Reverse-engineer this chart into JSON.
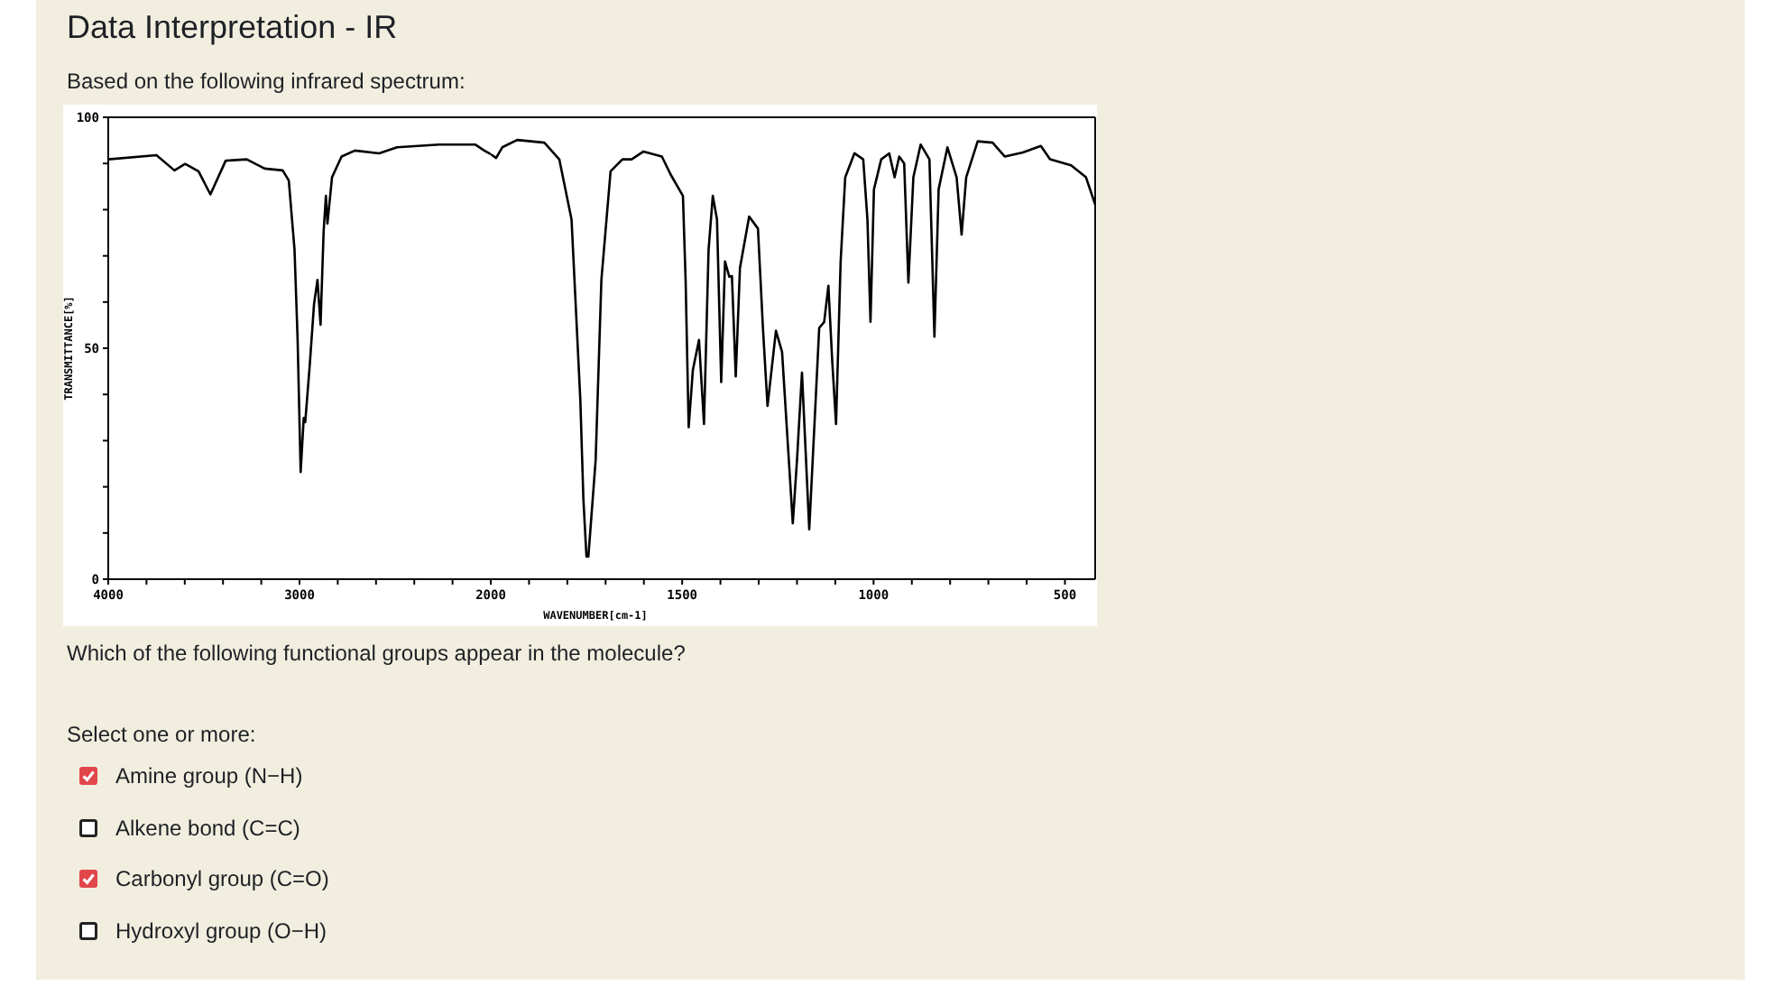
{
  "chart_data": [
    {
      "type": "line",
      "title": "Data Interpretation - IR",
      "subtitle": "Based on the following infrared spectrum:",
      "ylabel": "TRANSMITTANCE[%]",
      "annotations": [
        "Which of the following functional groups appear in the molecule?",
        "Select one or more:",
        "Amine group (N−H)",
        "Alkene bond (C=C)",
        "Carbonyl group (C=O)",
        "Hydroxyl group (O−H)"
      ],
      "x": [
        4000,
        3748,
        3654,
        3598,
        3528,
        3466,
        3386,
        3276,
        3182,
        3088,
        3056,
        3026,
        3010,
        2994,
        2978,
        2970,
        2946,
        2924,
        2906,
        2890,
        2874,
        2862,
        2854,
        2830,
        2780,
        2710,
        2584,
        2490,
        2270,
        2082,
        2034,
        2000
      ],
      "values": [
        90.9,
        91.8,
        88.5,
        89.9,
        88.3,
        83.3,
        90.6,
        90.9,
        88.9,
        88.5,
        86.3,
        71.3,
        52,
        23.2,
        34.9,
        34,
        46.6,
        59.6,
        64.8,
        55.1,
        75.2,
        83,
        77,
        87,
        91.5,
        92.8,
        92.2,
        93.5,
        94.1,
        94.1,
        92.8,
        92
      ],
      "color": "#000000",
      "marker": "none",
      "xlim": [
        4000,
        2000
      ],
      "xticks": [
        4000,
        {
          "value": 3800,
          "label": null
        },
        {
          "value": 3600,
          "label": null
        },
        {
          "value": 3400,
          "label": null
        },
        {
          "value": 3200,
          "label": null
        },
        3000,
        {
          "value": 2800,
          "label": null
        },
        {
          "value": 2600,
          "label": null
        },
        {
          "value": 2400,
          "label": null
        },
        {
          "value": 2200,
          "label": null
        },
        2000
      ],
      "ylim": [
        0,
        100
      ],
      "yticks": [
        0,
        {
          "value": 10,
          "label": null
        },
        {
          "value": 20,
          "label": null
        },
        {
          "value": 30,
          "label": null
        },
        {
          "value": 40,
          "label": null
        },
        50,
        {
          "value": 60,
          "label": null
        },
        {
          "value": 70,
          "label": null
        },
        {
          "value": 80,
          "label": null
        },
        {
          "value": 90,
          "label": null
        },
        100
      ]
    },
    {
      "type": "line",
      "xlabel": "WAVENUMBER[cm-1]",
      "tick_labels": "x",
      "x": [
        2000,
        1986,
        1970,
        1931,
        1860,
        1821,
        1789,
        1766,
        1758,
        1750,
        1745,
        1726,
        1711,
        1687,
        1656,
        1632,
        1601,
        1553,
        1530,
        1498,
        1491,
        1483,
        1472,
        1456,
        1443,
        1431,
        1420,
        1409,
        1398,
        1388,
        1377,
        1370,
        1360,
        1349,
        1325,
        1302,
        1289,
        1277,
        1255,
        1239,
        1211,
        1200,
        1187,
        1168,
        1152,
        1142,
        1129,
        1118,
        1108,
        1098,
        1086,
        1074,
        1050,
        1027,
        1016,
        1008,
        999,
        980,
        959,
        945,
        933,
        920,
        909,
        896,
        877,
        854,
        841,
        830,
        807,
        783,
        770,
        758,
        728,
        689,
        657,
        610,
        563,
        539,
        484,
        445,
        421
      ],
      "values": [
        92,
        91.2,
        93.5,
        95.1,
        94.5,
        90.9,
        77.9,
        38.8,
        17.3,
        4.9,
        4.9,
        25.8,
        64.8,
        88.3,
        90.9,
        90.9,
        92.6,
        91.5,
        87.6,
        83,
        64.8,
        32.9,
        45.3,
        51.8,
        33.6,
        71.3,
        83,
        77.9,
        42.7,
        68.8,
        65.5,
        65.6,
        43.9,
        67.4,
        78.5,
        75.9,
        54.4,
        37.5,
        53.8,
        49.2,
        12.1,
        25.8,
        44.7,
        10.8,
        37.5,
        54.4,
        55.7,
        63.5,
        47.3,
        33.6,
        68.8,
        87,
        92.2,
        90.9,
        77.9,
        55.7,
        84.4,
        90.9,
        92.2,
        87,
        91.5,
        90,
        64.2,
        87,
        94.1,
        90.9,
        52.5,
        84.4,
        93.5,
        87,
        74.6,
        87,
        94.8,
        94.5,
        91.5,
        92.4,
        93.8,
        90.9,
        89.6,
        87,
        81.1
      ],
      "color": "#000000",
      "marker": "none",
      "xlim": [
        2000,
        421
      ],
      "xticks": [
        {
          "value": 1900,
          "label": null
        },
        {
          "value": 1800,
          "label": null
        },
        {
          "value": 1700,
          "label": null
        },
        {
          "value": 1600,
          "label": null
        },
        1500,
        {
          "value": 1400,
          "label": null
        },
        {
          "value": 1300,
          "label": null
        },
        {
          "value": 1200,
          "label": null
        },
        {
          "value": 1100,
          "label": null
        },
        1000,
        {
          "value": 900,
          "label": null
        },
        {
          "value": 800,
          "label": null
        },
        {
          "value": 700,
          "label": null
        },
        {
          "value": 600,
          "label": null
        },
        500
      ],
      "ylim": [
        0,
        100
      ]
    }
  ]
}
